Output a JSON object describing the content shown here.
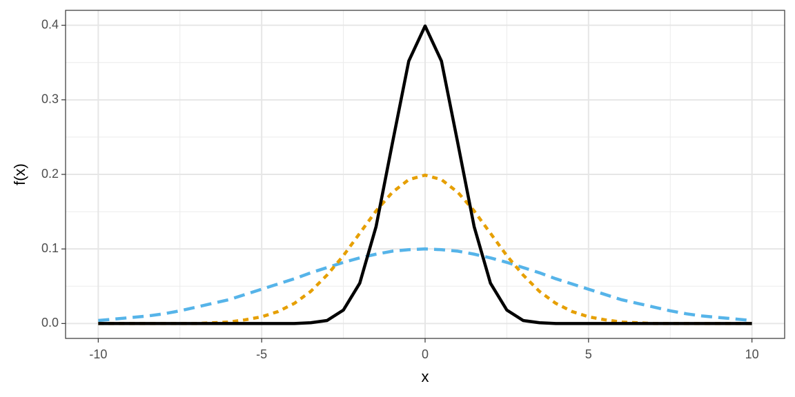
{
  "chart_data": {
    "type": "line",
    "x_label": "x",
    "y_label": "f(x)",
    "x": [
      -10,
      -9.5,
      -9,
      -8.5,
      -8,
      -7.5,
      -7,
      -6.5,
      -6,
      -5.5,
      -5,
      -4.5,
      -4,
      -3.5,
      -3,
      -2.5,
      -2,
      -1.5,
      -1,
      -0.5,
      0,
      0.5,
      1,
      1.5,
      2,
      2.5,
      3,
      3.5,
      4,
      4.5,
      5,
      5.5,
      6,
      6.5,
      7,
      7.5,
      8,
      8.5,
      9,
      9.5,
      10
    ],
    "series": [
      {
        "color": "#56b4e9",
        "dash": "dashed",
        "values": [
          0.004,
          0.006,
          0.008,
          0.01,
          0.013,
          0.017,
          0.022,
          0.027,
          0.032,
          0.039,
          0.046,
          0.053,
          0.06,
          0.068,
          0.075,
          0.082,
          0.088,
          0.093,
          0.097,
          0.099,
          0.1,
          0.099,
          0.097,
          0.093,
          0.088,
          0.082,
          0.075,
          0.068,
          0.06,
          0.053,
          0.046,
          0.039,
          0.032,
          0.027,
          0.022,
          0.017,
          0.013,
          0.01,
          0.008,
          0.006,
          0.004
        ]
      },
      {
        "color": "#e69f00",
        "dash": "dotted",
        "values": [
          0,
          0,
          0,
          0,
          0,
          0,
          0,
          0.001,
          0.002,
          0.005,
          0.009,
          0.016,
          0.027,
          0.043,
          0.065,
          0.091,
          0.121,
          0.151,
          0.176,
          0.193,
          0.199,
          0.193,
          0.176,
          0.151,
          0.121,
          0.091,
          0.065,
          0.043,
          0.027,
          0.016,
          0.009,
          0.005,
          0.002,
          0.001,
          0,
          0,
          0,
          0,
          0,
          0,
          0
        ]
      },
      {
        "color": "#000000",
        "dash": "solid",
        "values": [
          0,
          0,
          0,
          0,
          0,
          0,
          0,
          0,
          0,
          0,
          0,
          0,
          0,
          0.001,
          0.004,
          0.018,
          0.054,
          0.13,
          0.242,
          0.352,
          0.399,
          0.352,
          0.242,
          0.13,
          0.054,
          0.018,
          0.004,
          0.001,
          0,
          0,
          0,
          0,
          0,
          0,
          0,
          0,
          0,
          0,
          0,
          0,
          0
        ]
      }
    ],
    "xlim": [
      -11,
      11
    ],
    "ylim": [
      -0.02,
      0.42
    ],
    "xticks": [
      -10,
      -5,
      0,
      5,
      10
    ],
    "yticks": [
      {
        "value": 0,
        "label": "0.0"
      },
      0.1,
      0.2,
      0.3,
      0.4
    ],
    "x_minor_grid": [
      -7.5,
      -2.5,
      2.5,
      7.5
    ],
    "y_minor_grid": [
      0.05,
      0.15,
      0.25,
      0.35
    ],
    "grid": true
  }
}
